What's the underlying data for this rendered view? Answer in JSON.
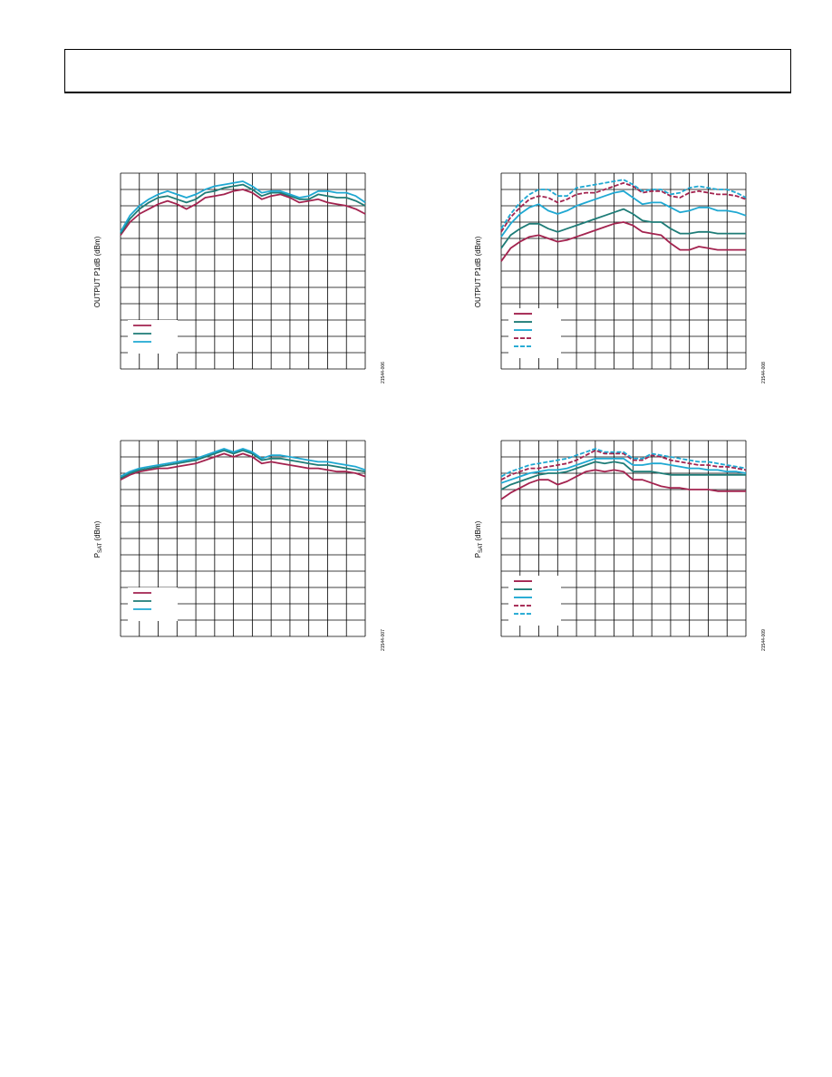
{
  "page": {
    "header_text": ""
  },
  "colors": {
    "maroon": "#A3234F",
    "teal": "#1E7C77",
    "cyan": "#1FA8D2",
    "grid": "#000000"
  },
  "chart_data": [
    {
      "type": "line",
      "ylabel": "OUTPUT P1dB (dBm)",
      "figure_id": "21544-006",
      "x": [
        0,
        0.5,
        1,
        1.5,
        2,
        2.5,
        3,
        3.5,
        4,
        4.5,
        5,
        5.5,
        6,
        6.5,
        7,
        7.5,
        8,
        8.5,
        9,
        9.5,
        10,
        10.5,
        11,
        11.5,
        12,
        12.5,
        13
      ],
      "xlim": [
        0,
        13
      ],
      "ylim": [
        0,
        12
      ],
      "grid": true,
      "legend_position": "lower-left",
      "series": [
        {
          "color": "maroon",
          "style": "solid",
          "values": [
            8.2,
            9.0,
            9.5,
            9.8,
            10.1,
            10.3,
            10.1,
            9.8,
            10.1,
            10.5,
            10.6,
            10.7,
            10.9,
            11.0,
            10.8,
            10.4,
            10.6,
            10.7,
            10.5,
            10.2,
            10.3,
            10.4,
            10.2,
            10.1,
            10.0,
            9.8,
            9.5
          ]
        },
        {
          "color": "teal",
          "style": "solid",
          "values": [
            8.3,
            9.2,
            9.8,
            10.2,
            10.5,
            10.6,
            10.4,
            10.2,
            10.4,
            10.8,
            10.9,
            11.1,
            11.2,
            11.3,
            11.0,
            10.6,
            10.8,
            10.8,
            10.6,
            10.4,
            10.4,
            10.7,
            10.6,
            10.5,
            10.5,
            10.3,
            10.0
          ]
        },
        {
          "color": "cyan",
          "style": "solid",
          "values": [
            8.4,
            9.4,
            10.0,
            10.4,
            10.7,
            10.9,
            10.7,
            10.5,
            10.7,
            11.0,
            11.2,
            11.3,
            11.4,
            11.5,
            11.2,
            10.8,
            10.9,
            10.9,
            10.7,
            10.5,
            10.6,
            10.9,
            10.9,
            10.8,
            10.8,
            10.6,
            10.2
          ]
        }
      ]
    },
    {
      "type": "line",
      "ylabel": "OUTPUT P1dB (dBm)",
      "figure_id": "21544-008",
      "x": [
        0,
        0.5,
        1,
        1.5,
        2,
        2.5,
        3,
        3.5,
        4,
        4.5,
        5,
        5.5,
        6,
        6.5,
        7,
        7.5,
        8,
        8.5,
        9,
        9.5,
        10,
        10.5,
        11,
        11.5,
        12,
        12.5,
        13
      ],
      "xlim": [
        0,
        13
      ],
      "ylim": [
        0,
        12
      ],
      "grid": true,
      "legend_position": "lower-left",
      "series": [
        {
          "color": "maroon",
          "style": "solid",
          "values": [
            6.6,
            7.4,
            7.8,
            8.1,
            8.2,
            8.0,
            7.8,
            7.9,
            8.1,
            8.3,
            8.5,
            8.7,
            8.9,
            9.0,
            8.8,
            8.4,
            8.3,
            8.2,
            7.7,
            7.3,
            7.3,
            7.5,
            7.4,
            7.3,
            7.3,
            7.3,
            7.3
          ]
        },
        {
          "color": "teal",
          "style": "solid",
          "values": [
            7.4,
            8.2,
            8.6,
            8.9,
            8.9,
            8.6,
            8.4,
            8.6,
            8.8,
            9.0,
            9.2,
            9.4,
            9.6,
            9.8,
            9.5,
            9.1,
            9.0,
            9.0,
            8.6,
            8.3,
            8.3,
            8.4,
            8.4,
            8.3,
            8.3,
            8.3,
            8.3
          ]
        },
        {
          "color": "cyan",
          "style": "solid",
          "values": [
            8.1,
            8.9,
            9.5,
            9.9,
            10.1,
            9.7,
            9.5,
            9.7,
            10.0,
            10.2,
            10.4,
            10.6,
            10.8,
            10.9,
            10.5,
            10.1,
            10.2,
            10.2,
            9.9,
            9.6,
            9.7,
            9.9,
            9.9,
            9.7,
            9.7,
            9.6,
            9.4
          ]
        },
        {
          "color": "maroon",
          "style": "dashed",
          "values": [
            8.4,
            9.3,
            9.9,
            10.4,
            10.6,
            10.5,
            10.2,
            10.4,
            10.7,
            10.8,
            10.8,
            11.0,
            11.2,
            11.4,
            11.2,
            10.8,
            10.9,
            10.9,
            10.6,
            10.5,
            10.8,
            10.9,
            10.8,
            10.7,
            10.7,
            10.6,
            10.4
          ]
        },
        {
          "color": "cyan",
          "style": "dashed",
          "values": [
            8.6,
            9.5,
            10.2,
            10.7,
            11.0,
            11.0,
            10.6,
            10.6,
            11.1,
            11.2,
            11.3,
            11.4,
            11.5,
            11.6,
            11.3,
            10.9,
            11.0,
            11.0,
            10.7,
            10.8,
            11.1,
            11.2,
            11.1,
            11.0,
            11.0,
            10.8,
            10.5
          ]
        }
      ]
    },
    {
      "type": "line",
      "ylabel": "P",
      "ylabel_sub": "SAT",
      "ylabel_tail": " (dBm)",
      "figure_id": "21544-007",
      "x": [
        0,
        0.5,
        1,
        1.5,
        2,
        2.5,
        3,
        3.5,
        4,
        4.5,
        5,
        5.5,
        6,
        6.5,
        7,
        7.5,
        8,
        8.5,
        9,
        9.5,
        10,
        10.5,
        11,
        11.5,
        12,
        12.5,
        13
      ],
      "xlim": [
        0,
        13
      ],
      "ylim": [
        0,
        12
      ],
      "grid": true,
      "legend_position": "lower-left",
      "series": [
        {
          "color": "maroon",
          "style": "solid",
          "values": [
            9.6,
            9.9,
            10.1,
            10.2,
            10.3,
            10.3,
            10.4,
            10.5,
            10.6,
            10.8,
            11.0,
            11.2,
            11.0,
            11.2,
            11.0,
            10.6,
            10.7,
            10.6,
            10.5,
            10.4,
            10.3,
            10.3,
            10.2,
            10.1,
            10.1,
            10.0,
            9.8
          ]
        },
        {
          "color": "teal",
          "style": "solid",
          "values": [
            9.7,
            10.0,
            10.2,
            10.3,
            10.4,
            10.5,
            10.6,
            10.7,
            10.8,
            11.0,
            11.2,
            11.4,
            11.2,
            11.4,
            11.2,
            10.8,
            10.9,
            10.9,
            10.8,
            10.7,
            10.6,
            10.5,
            10.5,
            10.4,
            10.3,
            10.2,
            10.1
          ]
        },
        {
          "color": "cyan",
          "style": "solid",
          "values": [
            9.8,
            10.1,
            10.3,
            10.4,
            10.5,
            10.6,
            10.7,
            10.8,
            10.9,
            11.1,
            11.3,
            11.5,
            11.3,
            11.5,
            11.3,
            10.9,
            11.1,
            11.1,
            11.0,
            10.9,
            10.8,
            10.7,
            10.7,
            10.6,
            10.5,
            10.4,
            10.2
          ]
        }
      ]
    },
    {
      "type": "line",
      "ylabel": "P",
      "ylabel_sub": "SAT",
      "ylabel_tail": " (dBm)",
      "figure_id": "21544-009",
      "x": [
        0,
        0.5,
        1,
        1.5,
        2,
        2.5,
        3,
        3.5,
        4,
        4.5,
        5,
        5.5,
        6,
        6.5,
        7,
        7.5,
        8,
        8.5,
        9,
        9.5,
        10,
        10.5,
        11,
        11.5,
        12,
        12.5,
        13
      ],
      "xlim": [
        0,
        13
      ],
      "ylim": [
        0,
        12
      ],
      "grid": true,
      "legend_position": "lower-left",
      "series": [
        {
          "color": "maroon",
          "style": "solid",
          "values": [
            8.4,
            8.8,
            9.1,
            9.4,
            9.6,
            9.6,
            9.3,
            9.5,
            9.8,
            10.1,
            10.2,
            10.1,
            10.2,
            10.1,
            9.6,
            9.6,
            9.4,
            9.2,
            9.1,
            9.1,
            9.0,
            9.0,
            9.0,
            8.9,
            8.9,
            8.9,
            8.9
          ]
        },
        {
          "color": "teal",
          "style": "solid",
          "values": [
            9.0,
            9.3,
            9.5,
            9.7,
            9.9,
            10.0,
            10.0,
            10.1,
            10.3,
            10.5,
            10.7,
            10.6,
            10.7,
            10.6,
            10.1,
            10.1,
            10.1,
            10.0,
            9.9,
            9.9,
            9.9,
            9.9,
            9.9,
            9.9,
            9.9,
            9.9,
            9.9
          ]
        },
        {
          "color": "cyan",
          "style": "solid",
          "values": [
            9.4,
            9.6,
            9.8,
            10.0,
            10.1,
            10.2,
            10.2,
            10.3,
            10.5,
            10.7,
            10.9,
            10.9,
            10.9,
            10.9,
            10.5,
            10.5,
            10.6,
            10.6,
            10.5,
            10.4,
            10.3,
            10.3,
            10.2,
            10.2,
            10.1,
            10.1,
            10.0
          ]
        },
        {
          "color": "maroon",
          "style": "dashed",
          "values": [
            9.6,
            9.9,
            10.1,
            10.3,
            10.3,
            10.4,
            10.5,
            10.6,
            10.8,
            11.1,
            11.4,
            11.2,
            11.2,
            11.2,
            10.8,
            10.8,
            11.1,
            11.0,
            10.8,
            10.7,
            10.6,
            10.5,
            10.5,
            10.4,
            10.4,
            10.3,
            10.2
          ]
        },
        {
          "color": "cyan",
          "style": "dashed",
          "values": [
            9.8,
            10.1,
            10.3,
            10.5,
            10.6,
            10.7,
            10.8,
            10.9,
            11.1,
            11.3,
            11.5,
            11.3,
            11.3,
            11.3,
            10.9,
            10.9,
            11.2,
            11.1,
            11.0,
            10.9,
            10.8,
            10.7,
            10.7,
            10.6,
            10.5,
            10.4,
            10.3
          ]
        }
      ]
    }
  ]
}
